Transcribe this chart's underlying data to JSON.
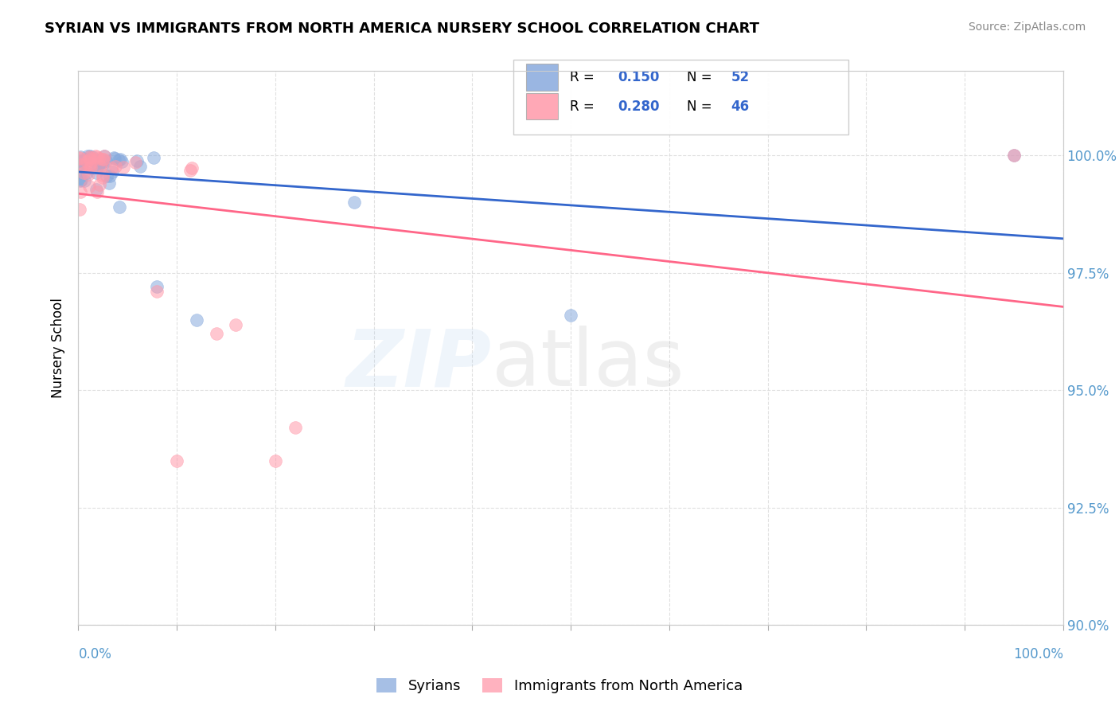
{
  "title": "SYRIAN VS IMMIGRANTS FROM NORTH AMERICA NURSERY SCHOOL CORRELATION CHART",
  "source": "Source: ZipAtlas.com",
  "ylabel": "Nursery School",
  "ytick_values": [
    90.0,
    92.5,
    95.0,
    97.5,
    100.0
  ],
  "legend1_label": "Syrians",
  "legend2_label": "Immigrants from North America",
  "r1": 0.15,
  "n1": 52,
  "r2": 0.28,
  "n2": 46,
  "color_syrian": "#88AADD",
  "color_northam": "#FF99AA",
  "color_line_syrian": "#3366CC",
  "color_line_northam": "#FF6688",
  "color_num": "#3366CC",
  "ylim_min": 90.0,
  "ylim_max": 101.8,
  "xlim_min": 0.0,
  "xlim_max": 100.0
}
